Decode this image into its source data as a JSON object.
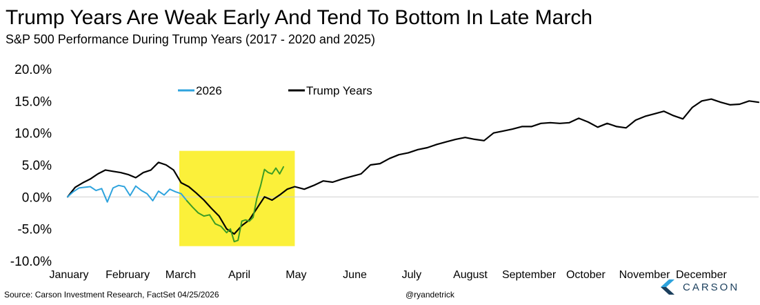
{
  "title": "Trump Years Are Weak Early And Tend To Bottom In Late March",
  "subtitle": "S&P 500 Performance During Trump Years (2017 - 2020 and 2025)",
  "source": "Source: Carson Investment Research, FactSet 04/25/2026",
  "handle": "@ryandetrick",
  "brand": "CARSON",
  "chart_data": {
    "type": "line",
    "xlabel": "",
    "ylabel": "",
    "xlim": [
      0,
      365
    ],
    "ylim": [
      -10,
      20
    ],
    "grid": false,
    "legend_position": "top-left",
    "y_ticks": [
      {
        "value": 20,
        "label": "20.0%"
      },
      {
        "value": 15,
        "label": "15.0%"
      },
      {
        "value": 10,
        "label": "10.0%"
      },
      {
        "value": 5,
        "label": "5.0%"
      },
      {
        "value": 0,
        "label": "0.0%"
      },
      {
        "value": -5,
        "label": "-5.0%"
      },
      {
        "value": -10,
        "label": "-10.0%"
      }
    ],
    "x_ticks": [
      {
        "value": 0,
        "label": "January"
      },
      {
        "value": 31,
        "label": "February"
      },
      {
        "value": 59,
        "label": "March"
      },
      {
        "value": 90,
        "label": "April"
      },
      {
        "value": 120,
        "label": "May"
      },
      {
        "value": 151,
        "label": "June"
      },
      {
        "value": 181,
        "label": "July"
      },
      {
        "value": 212,
        "label": "August"
      },
      {
        "value": 243,
        "label": "September"
      },
      {
        "value": 273,
        "label": "October"
      },
      {
        "value": 304,
        "label": "November"
      },
      {
        "value": 334,
        "label": "December"
      }
    ],
    "highlight": {
      "x_start": 59,
      "x_end": 120,
      "y_min": -7.7,
      "y_max": 7.2,
      "color": "#fbf03a"
    },
    "series": [
      {
        "name": "Trump Years",
        "color": "#000000",
        "x": [
          0,
          4,
          8,
          12,
          16,
          20,
          24,
          28,
          32,
          36,
          40,
          44,
          48,
          52,
          56,
          60,
          64,
          68,
          72,
          76,
          80,
          84,
          88,
          92,
          96,
          100,
          104,
          108,
          112,
          116,
          120,
          125,
          130,
          135,
          140,
          145,
          150,
          155,
          160,
          165,
          170,
          175,
          180,
          185,
          190,
          195,
          200,
          205,
          210,
          215,
          220,
          225,
          230,
          235,
          240,
          245,
          250,
          255,
          260,
          265,
          270,
          275,
          280,
          285,
          290,
          295,
          300,
          305,
          310,
          315,
          320,
          325,
          330,
          335,
          340,
          345,
          350,
          355,
          360,
          365
        ],
        "values": [
          0,
          1.5,
          2.2,
          2.8,
          3.6,
          4.2,
          4.0,
          3.8,
          3.5,
          3.0,
          3.8,
          4.2,
          5.4,
          5.0,
          4.2,
          2.2,
          1.6,
          0.6,
          -0.5,
          -1.8,
          -3.0,
          -5.0,
          -5.8,
          -4.5,
          -3.6,
          -1.8,
          0,
          -0.5,
          0.3,
          1.2,
          1.6,
          1.2,
          1.8,
          2.5,
          2.3,
          2.8,
          3.2,
          3.6,
          5.0,
          5.2,
          6.0,
          6.6,
          6.9,
          7.4,
          7.7,
          8.2,
          8.6,
          9.0,
          9.3,
          9.0,
          8.8,
          10.0,
          10.3,
          10.6,
          11.0,
          11.0,
          11.5,
          11.6,
          11.5,
          11.6,
          12.3,
          11.7,
          10.9,
          11.5,
          11.0,
          10.8,
          12.0,
          12.6,
          13.0,
          13.4,
          12.7,
          12.2,
          14.0,
          15.0,
          15.3,
          14.8,
          14.4,
          14.5,
          15.0,
          14.8
        ]
      },
      {
        "name": "2026",
        "color": "#2ea3dd",
        "x": [
          0,
          3,
          6,
          9,
          12,
          15,
          18,
          21,
          24,
          27,
          30,
          33,
          36,
          39,
          42,
          45,
          48,
          51,
          54,
          57,
          60,
          63
        ],
        "values": [
          0,
          0.8,
          1.4,
          1.5,
          1.6,
          1.0,
          1.3,
          -0.8,
          1.4,
          1.8,
          1.6,
          0.2,
          1.7,
          1.0,
          0.5,
          -0.6,
          0.9,
          0.3,
          1.2,
          0.8,
          0.5,
          -0.6
        ]
      },
      {
        "name": "",
        "color": "#3c9c25",
        "x": [
          63,
          66,
          69,
          72,
          75,
          78,
          81,
          84,
          86,
          88,
          90,
          92,
          94,
          96,
          98,
          100,
          102,
          104,
          106,
          108,
          110,
          112,
          114
        ],
        "values": [
          -0.6,
          -1.6,
          -2.5,
          -3.0,
          -2.8,
          -4.2,
          -4.6,
          -5.6,
          -5.0,
          -7.0,
          -6.8,
          -3.8,
          -3.6,
          -3.8,
          -3.2,
          -0.2,
          1.8,
          4.3,
          3.8,
          3.6,
          4.5,
          3.6,
          4.7
        ]
      }
    ],
    "legend": [
      {
        "label": "2026",
        "color": "#2ea3dd"
      },
      {
        "label": "Trump Years",
        "color": "#000000"
      }
    ]
  }
}
